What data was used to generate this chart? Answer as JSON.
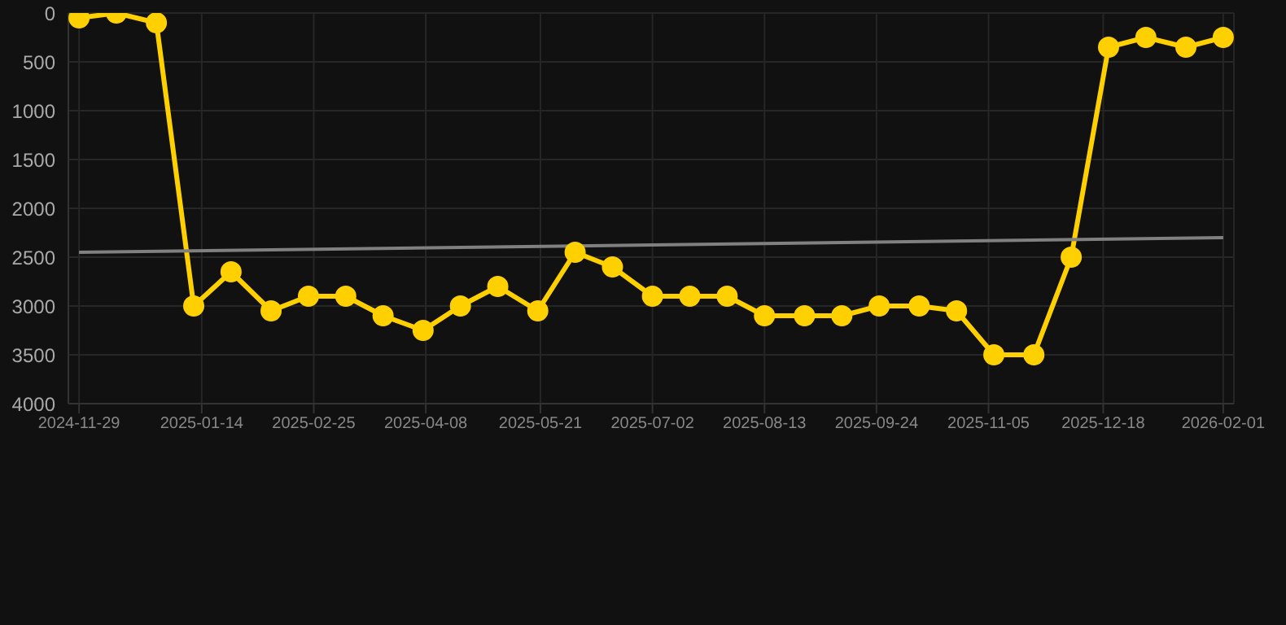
{
  "chart_data": {
    "type": "line",
    "x": [
      "2024-11-29",
      "2024-12-13",
      "2024-12-28",
      "2025-01-11",
      "2025-01-25",
      "2025-02-09",
      "2025-02-23",
      "2025-03-09",
      "2025-03-23",
      "2025-04-07",
      "2025-04-21",
      "2025-05-05",
      "2025-05-20",
      "2025-06-03",
      "2025-06-17",
      "2025-07-02",
      "2025-07-16",
      "2025-07-30",
      "2025-08-13",
      "2025-08-28",
      "2025-09-11",
      "2025-09-25",
      "2025-10-10",
      "2025-10-24",
      "2025-11-07",
      "2025-11-22",
      "2025-12-06",
      "2025-12-20",
      "2026-01-03",
      "2026-01-18",
      "2026-02-01"
    ],
    "series": [
      {
        "color": "#ffd000",
        "marker": "circle",
        "values": [
          50,
          0,
          100,
          3000,
          2650,
          3050,
          2900,
          2900,
          3100,
          3250,
          3000,
          2800,
          3050,
          2450,
          2600,
          2900,
          2900,
          2900,
          3100,
          3100,
          3100,
          3000,
          3000,
          3050,
          3500,
          3500,
          2500,
          350,
          250,
          350,
          250
        ]
      },
      {
        "type": "line",
        "color": "#808080",
        "marker": "none",
        "x": [
          "2024-11-29",
          "2026-02-01"
        ],
        "values": [
          2450,
          2300
        ]
      }
    ],
    "xlim": [
      "2024-11-25",
      "2026-02-05"
    ],
    "xticks": [
      "2024-11-29",
      "2025-01-14",
      "2025-02-25",
      "2025-04-08",
      "2025-05-21",
      "2025-07-02",
      "2025-08-13",
      "2025-09-24",
      "2025-11-05",
      "2025-12-18",
      "2026-02-01"
    ],
    "ylim": [
      4000,
      0
    ],
    "yticks": [
      0,
      500,
      1000,
      1500,
      2000,
      2500,
      3000,
      3500,
      4000
    ],
    "grid": true,
    "line_style": "solid"
  }
}
